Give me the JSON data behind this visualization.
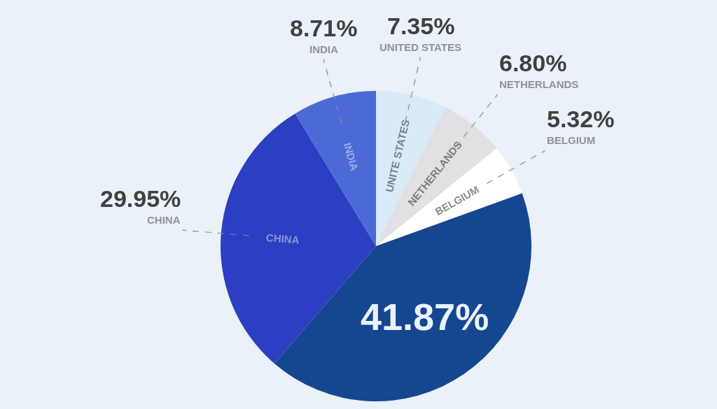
{
  "chart_data": {
    "type": "pie",
    "categories": [
      "UNITED STATES",
      "NETHERLANDS",
      "BELGIUM",
      null,
      "CHINA",
      "INDIA"
    ],
    "values": [
      7.35,
      6.8,
      5.32,
      41.87,
      29.95,
      8.71
    ],
    "colors": [
      "#d9eaf8",
      "#e1e1e3",
      "#ffffff",
      "#154690",
      "#2a3fc1",
      "#4b6ad6"
    ],
    "value_labels": [
      "7.35%",
      "6.80%",
      "5.32%",
      "41.87%",
      "29.95%",
      "8.71%"
    ],
    "annotations": [
      "UNITE STATES",
      "NETHERLANDS",
      "BELGIUM",
      "CHINA",
      "INDIA"
    ]
  }
}
